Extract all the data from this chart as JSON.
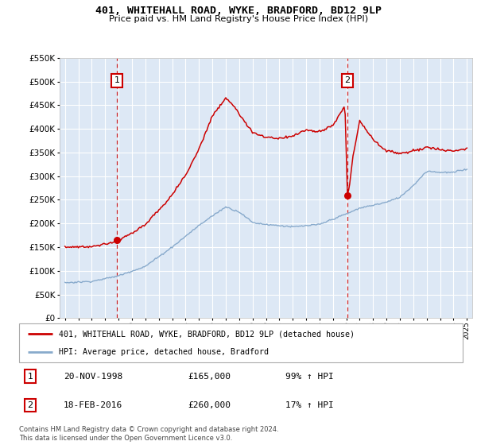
{
  "title": "401, WHITEHALL ROAD, WYKE, BRADFORD, BD12 9LP",
  "subtitle": "Price paid vs. HM Land Registry's House Price Index (HPI)",
  "sale1_date": "20-NOV-1998",
  "sale1_price": 165000,
  "sale1_hpi_pct": "99% ↑ HPI",
  "sale2_date": "18-FEB-2016",
  "sale2_price": 260000,
  "sale2_hpi_pct": "17% ↑ HPI",
  "legend_line1": "401, WHITEHALL ROAD, WYKE, BRADFORD, BD12 9LP (detached house)",
  "legend_line2": "HPI: Average price, detached house, Bradford",
  "footer": "Contains HM Land Registry data © Crown copyright and database right 2024.\nThis data is licensed under the Open Government Licence v3.0.",
  "red_color": "#cc0000",
  "blue_color": "#88aacc",
  "bg_color": "#dde8f5",
  "grid_color": "#ffffff",
  "ylim": [
    0,
    550000
  ],
  "yticks": [
    0,
    50000,
    100000,
    150000,
    200000,
    250000,
    300000,
    350000,
    400000,
    450000,
    500000,
    550000
  ],
  "xstart": 1995,
  "xend": 2025,
  "sale1_x": 1998.875,
  "sale2_x": 2016.083
}
